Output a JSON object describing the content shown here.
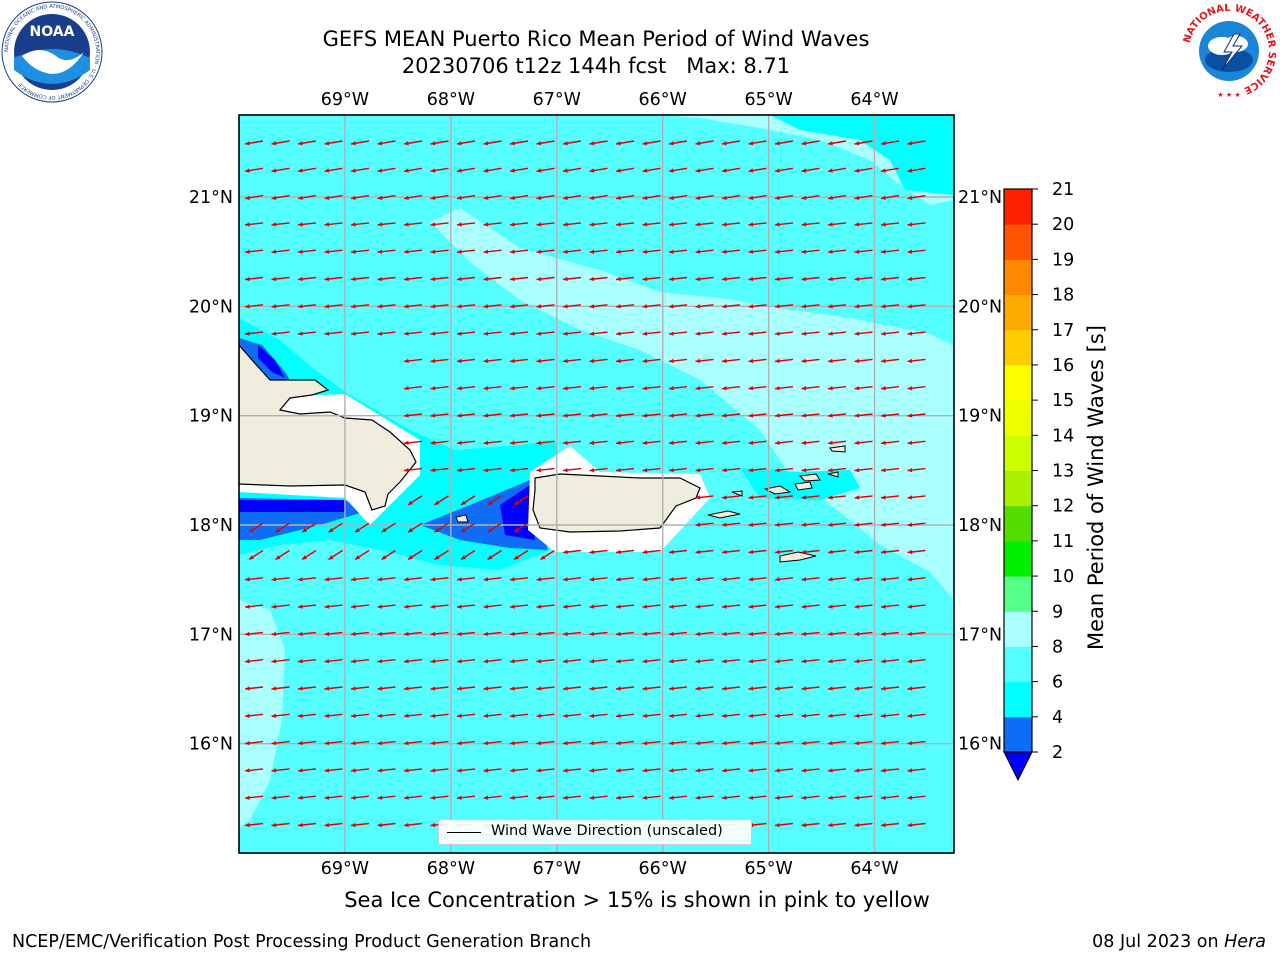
{
  "header": {
    "title_line1": "GEFS MEAN Puerto Rico Mean Period of Wind Waves",
    "title_line2": "20230706 t12z 144h fcst   Max: 8.71"
  },
  "logos": {
    "noaa_text": "NOAA",
    "noaa_ring_text": "NATIONAL OCEANIC AND ATMOSPHERIC ADMINISTRATION · U.S. DEPARTMENT OF COMMERCE",
    "nws_ring_text": "NATIONAL WEATHER SERVICE"
  },
  "map": {
    "lon_labels": [
      "69°W",
      "68°W",
      "67°W",
      "66°W",
      "65°W",
      "64°W"
    ],
    "lon_values": [
      -69,
      -68,
      -67,
      -66,
      -65,
      -64
    ],
    "lat_labels": [
      "21°N",
      "20°N",
      "19°N",
      "18°N",
      "17°N",
      "16°N"
    ],
    "lat_values": [
      21,
      20,
      19,
      18,
      17,
      16
    ],
    "extent": {
      "lon_min": -70.0,
      "lon_max": -63.25,
      "lat_min": 15.0,
      "lat_max": 21.75
    },
    "legend_label": "Wind Wave Direction (unscaled)",
    "arrow_color": "#e00000",
    "land_color": "#efedde",
    "background_fill": "#55ffff"
  },
  "colorbar": {
    "label": "Mean Period of Wind Waves [s]",
    "ticks": [
      "2",
      "4",
      "6",
      "8",
      "9",
      "10",
      "11",
      "12",
      "13",
      "14",
      "15",
      "16",
      "17",
      "18",
      "19",
      "20",
      "21"
    ],
    "colors": [
      "#0d6ef5",
      "#00ffff",
      "#55ffff",
      "#aaffff",
      "#55ff88",
      "#00ee00",
      "#55dd00",
      "#aaee00",
      "#ccff00",
      "#eeff00",
      "#ffff00",
      "#ffcc00",
      "#ffaa00",
      "#ff8800",
      "#ff5500",
      "#ff2200"
    ],
    "under_color": "#0000ff"
  },
  "note": "Sea Ice Concentration > 15% is shown in pink to yellow",
  "footer": {
    "left": "NCEP/EMC/Verification Post Processing Product Generation Branch",
    "right_date": "08 Jul 2023 on ",
    "right_host": "Hera"
  }
}
